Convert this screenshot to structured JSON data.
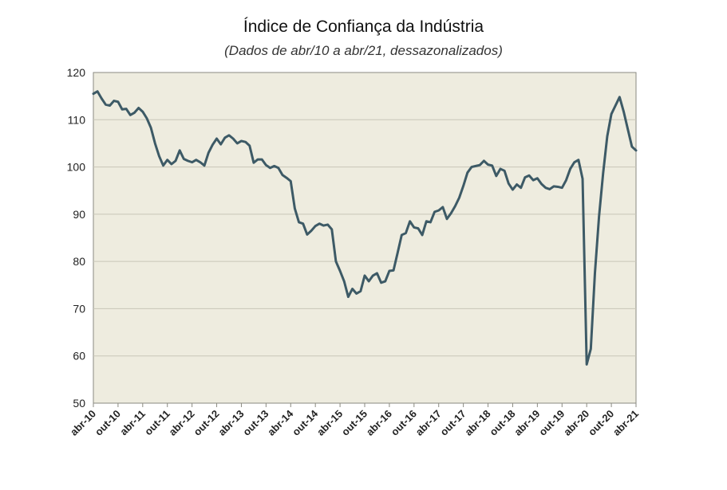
{
  "chart_data": {
    "type": "line",
    "title": "Índice de Confiança da Indústria",
    "subtitle": "(Dados de abr/10 a abr/21, dessazonalizados)",
    "xlabel": "",
    "ylabel": "",
    "ylim": [
      50,
      120
    ],
    "yticks": [
      50,
      60,
      70,
      80,
      90,
      100,
      110,
      120
    ],
    "x_tick_labels": [
      "abr-10",
      "out-10",
      "abr-11",
      "out-11",
      "abr-12",
      "out-12",
      "abr-13",
      "out-13",
      "abr-14",
      "out-14",
      "abr-15",
      "out-15",
      "abr-16",
      "out-16",
      "abr-17",
      "out-17",
      "abr-18",
      "out-18",
      "abr-19",
      "out-19",
      "abr-20",
      "out-20",
      "abr-21"
    ],
    "grid": true,
    "colors": {
      "line": "#3d5a66",
      "plot_background": "#eeecdf",
      "grid": "#c8c6b8"
    },
    "series": [
      {
        "name": "Índice de Confiança da Indústria",
        "values": [
          115.5,
          116,
          114.5,
          113.2,
          113,
          114,
          113.8,
          112.2,
          112.3,
          111,
          111.5,
          112.5,
          111.7,
          110.3,
          108.3,
          105,
          102.3,
          100.3,
          101.5,
          100.6,
          101.3,
          103.5,
          101.7,
          101.3,
          101,
          101.5,
          101,
          100.3,
          103,
          104.7,
          106,
          104.8,
          106.2,
          106.7,
          106,
          105,
          105.5,
          105.3,
          104.5,
          100.9,
          101.6,
          101.6,
          100.4,
          99.8,
          100.2,
          99.8,
          98.3,
          97.7,
          97,
          91.2,
          88.3,
          88,
          85.7,
          86.5,
          87.5,
          88,
          87.6,
          87.8,
          86.8,
          80,
          78,
          75.8,
          72.5,
          74.2,
          73.2,
          73.7,
          77,
          75.8,
          77,
          77.5,
          75.5,
          75.8,
          78,
          78.1,
          81.8,
          85.6,
          86,
          88.5,
          87.2,
          87,
          85.6,
          88.5,
          88.3,
          90.5,
          90.8,
          91.5,
          89,
          90.2,
          91.7,
          93.5,
          96,
          98.8,
          100,
          100.2,
          100.4,
          101.3,
          100.5,
          100.3,
          98.1,
          99.6,
          99.2,
          96.5,
          95.2,
          96.3,
          95.6,
          97.8,
          98.2,
          97.2,
          97.6,
          96.4,
          95.6,
          95.3,
          95.9,
          95.8,
          95.6,
          97.2,
          99.6,
          101,
          101.5,
          97.5,
          58.2,
          61.5,
          77.5,
          89.5,
          98.7,
          106.5,
          111.2,
          113,
          114.8,
          111.7,
          108,
          104.3,
          103.5
        ]
      }
    ]
  }
}
